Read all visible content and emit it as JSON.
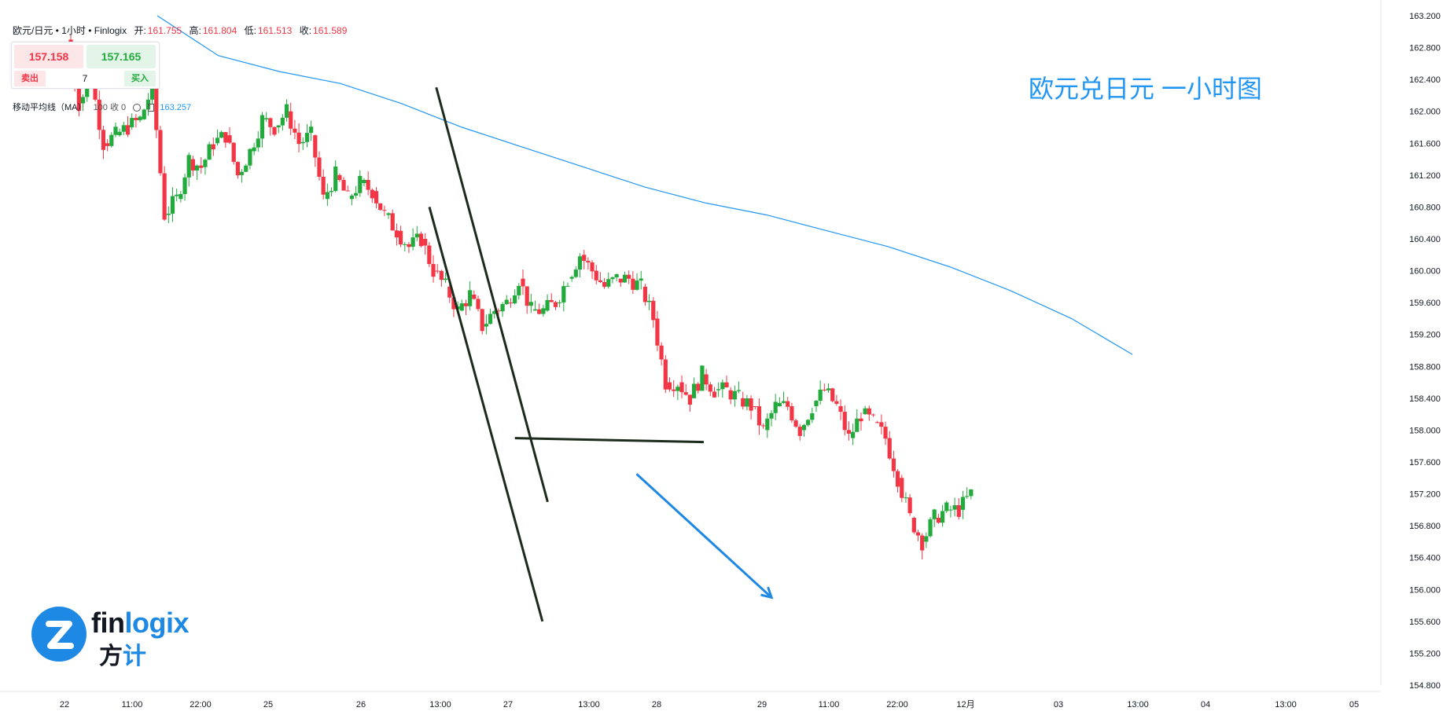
{
  "header": {
    "symbol": "欧元/日元 • 1小时 • Finlogix",
    "open_label": "开:",
    "open": "161.755",
    "high_label": "高:",
    "high": "161.804",
    "low_label": "低:",
    "low": "161.513",
    "close_label": "收:",
    "close": "161.589"
  },
  "trade_panel": {
    "sell_price": "157.158",
    "buy_price": "157.165",
    "sell_label": "卖出",
    "quantity": "7",
    "buy_label": "买入"
  },
  "indicator": {
    "label": "移动平均线（MA）",
    "params": "100 收 0",
    "value": "163.257"
  },
  "logo": {
    "text_a": "fin",
    "text_b": "logix",
    "cn_a": "方",
    "cn_b": "计"
  },
  "colors": {
    "up": "#22ab3c",
    "down": "#f23645",
    "ma": "#2196f3",
    "annotation": "#1e88e5",
    "trendline": "#1c2b1c"
  },
  "chart_data": {
    "type": "candlestick",
    "title": "欧元兑日元 一小时图",
    "ylim": [
      154.8,
      163.2
    ],
    "y_ticks": [
      "163.200",
      "162.800",
      "162.400",
      "162.000",
      "161.600",
      "161.200",
      "160.800",
      "160.400",
      "160.000",
      "159.600",
      "159.200",
      "158.800",
      "158.400",
      "158.000",
      "157.600",
      "157.200",
      "156.800",
      "156.400",
      "156.000",
      "155.600",
      "155.200",
      "154.800"
    ],
    "x_ticks": [
      "22",
      "11:00",
      "22:00",
      "25",
      "26",
      "13:00",
      "27",
      "13:00",
      "28",
      "29",
      "11:00",
      "22:00",
      "12月",
      "03",
      "13:00",
      "04",
      "13:00",
      "05"
    ],
    "candle_path": [
      162.9,
      162.1,
      162.4,
      161.6,
      161.7,
      161.8,
      161.9,
      162.3,
      160.7,
      160.9,
      161.4,
      161.3,
      161.6,
      161.7,
      161.2,
      161.5,
      161.9,
      161.8,
      162.0,
      161.6,
      161.7,
      160.9,
      161.2,
      160.9,
      161.1,
      161.0,
      160.7,
      160.5,
      160.3,
      160.4,
      160.0,
      159.8,
      159.5,
      159.7,
      159.3,
      159.5,
      159.6,
      159.9,
      159.5,
      159.5,
      159.6,
      159.9,
      160.2,
      160.0,
      159.8,
      159.9,
      159.9,
      159.8,
      159.4,
      158.6,
      158.6,
      158.4,
      158.7,
      158.5,
      158.5,
      158.4,
      158.3,
      158.0,
      158.3,
      158.3,
      158.0,
      158.3,
      158.5,
      158.3,
      157.9,
      158.2,
      158.1,
      157.9,
      157.4,
      156.9,
      156.6,
      156.9,
      157.0,
      157.0,
      157.2
    ],
    "moving_average": {
      "name": "MA 100",
      "values": [
        163.2,
        162.7,
        162.5,
        162.35,
        162.1,
        161.8,
        161.55,
        161.3,
        161.05,
        160.85,
        160.7,
        160.5,
        160.3,
        160.05,
        159.75,
        159.4,
        158.95
      ]
    },
    "annotations": {
      "upper_channel_line": [
        [
          159.9,
          162.3
        ],
        [
          179.3,
          157.1
        ]
      ],
      "lower_channel_line": [
        [
          158.7,
          160.8
        ],
        [
          178.4,
          155.6
        ]
      ],
      "support_line": [
        [
          173.6,
          157.9
        ],
        [
          206.5,
          157.85
        ]
      ],
      "forecast_arrow": [
        [
          194.8,
          157.45
        ],
        [
          218.3,
          155.9
        ]
      ]
    }
  }
}
